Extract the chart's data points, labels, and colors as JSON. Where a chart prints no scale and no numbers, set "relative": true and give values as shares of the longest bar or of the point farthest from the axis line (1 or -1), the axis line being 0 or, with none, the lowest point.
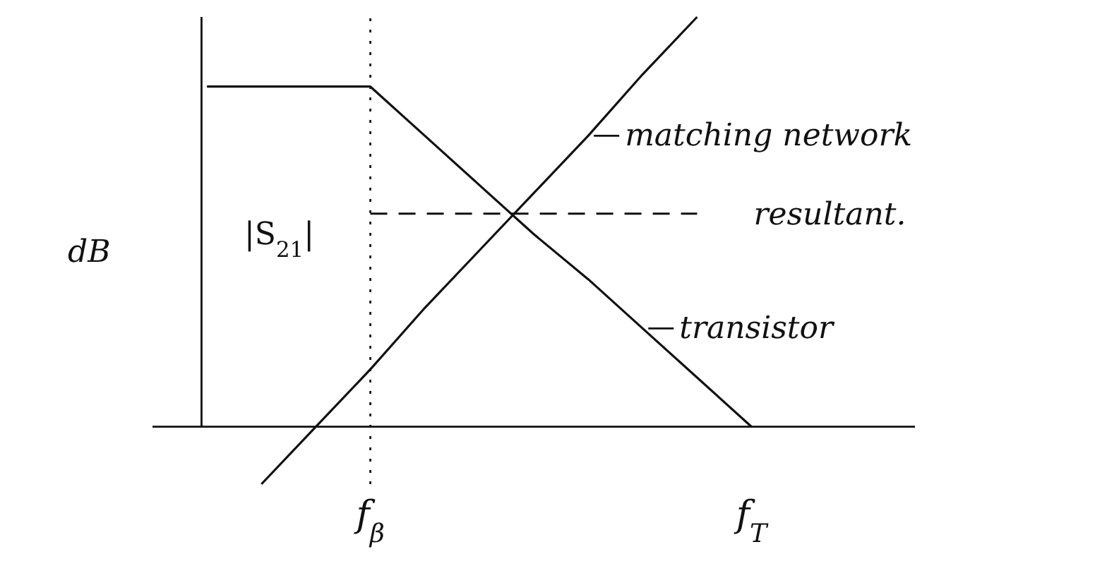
{
  "chart_data": {
    "type": "line",
    "relative": true,
    "ylabel": "dB",
    "categories": [
      null,
      null,
      null,
      "f$_{β}$",
      null,
      null,
      null,
      null,
      null,
      null,
      "f$_{T}$"
    ],
    "series": [
      {
        "name": "transistor",
        "color": "#111111",
        "values": [
          0.83,
          0.83,
          0.83,
          0.83,
          0.71,
          0.59,
          0.47,
          0.36,
          0.24,
          0.12,
          0
        ]
      },
      {
        "name": "matching network",
        "color": "#111111",
        "values": [
          null,
          -0.14,
          0,
          0.14,
          0.29,
          0.43,
          0.57,
          0.71,
          0.86,
          1,
          null
        ]
      }
    ],
    "ref_lines": [
      {
        "axis": "y",
        "value": 0.52,
        "label": "resultant.",
        "line_style": "dashed",
        "color": "#111111"
      },
      {
        "axis": "x",
        "value": "f$_{β}$",
        "label": null,
        "line_style": "dotted",
        "color": "#111111"
      }
    ],
    "annotations": [
      "|S$_{21}$|"
    ],
    "marker": "none",
    "line_style": "solid",
    "legend": "right"
  }
}
